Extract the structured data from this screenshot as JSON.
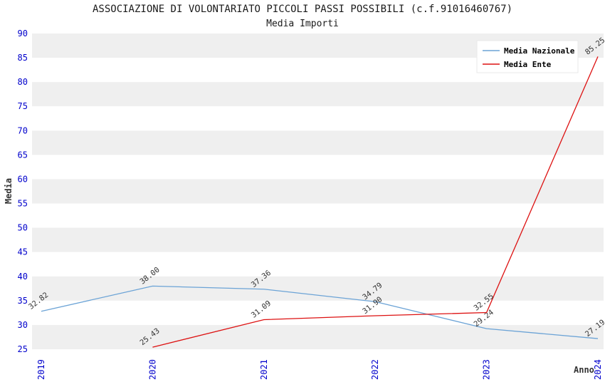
{
  "chart_data": {
    "type": "line",
    "title": "ASSOCIAZIONE DI VOLONTARIATO PICCOLI PASSI POSSIBILI (c.f.91016460767)",
    "subtitle": "Media Importi",
    "xlabel": "Anno",
    "ylabel": "Media",
    "ylim": [
      25,
      90
    ],
    "ytick_step": 5,
    "categories": [
      2019,
      2020,
      2021,
      2022,
      2023,
      2024
    ],
    "tick_color": "#0000cc",
    "axis_title_color": "#333333",
    "data_label_color": "#333333",
    "band_colors": [
      "#efefef",
      "#ffffff"
    ],
    "grid": "horizontal-bands",
    "legend_position": "top-right",
    "series": [
      {
        "name": "Media Nazionale",
        "color": "#6ba3d6",
        "x": [
          2019,
          2020,
          2021,
          2022,
          2023,
          2024
        ],
        "values": [
          32.82,
          38.0,
          37.36,
          34.79,
          29.24,
          27.19
        ],
        "value_labels": [
          "32.82",
          "38.00",
          "37.36",
          "34.79",
          "29.24",
          "27.19"
        ]
      },
      {
        "name": "Media Ente",
        "color": "#dd1111",
        "x": [
          2020,
          2021,
          2022,
          2023,
          2024
        ],
        "values": [
          25.43,
          31.09,
          31.9,
          32.55,
          85.25
        ],
        "value_labels": [
          "25.43",
          "31.09",
          "31.90",
          "32.55",
          "85.25"
        ]
      }
    ]
  }
}
